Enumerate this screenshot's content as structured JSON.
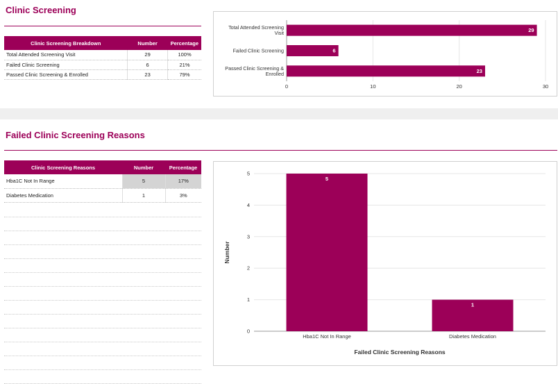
{
  "section1": {
    "title": "Clinic Screening",
    "table": {
      "headers": [
        "Clinic Screening Breakdown",
        "Number",
        "Percentage"
      ],
      "rows": [
        [
          "Total Attended Screening Visit",
          "29",
          "100%"
        ],
        [
          "Failed Clinic Screening",
          "6",
          "21%"
        ],
        [
          "Passed Clinic Screening & Enrolled",
          "23",
          "79%"
        ]
      ]
    }
  },
  "section2": {
    "title": "Failed Clinic Screening Reasons",
    "table": {
      "headers": [
        "Clinic Screening Reasons",
        "Number",
        "Percentage"
      ],
      "rows": [
        [
          "Hba1C Not In Range",
          "5",
          "17%"
        ],
        [
          "Diabetes Medication",
          "1",
          "3%"
        ]
      ]
    }
  },
  "colors": {
    "brand": "#9c0058",
    "grid": "#e6e6e6",
    "highlight": "#d4d4d4"
  },
  "chart_data": [
    {
      "type": "bar",
      "orientation": "horizontal",
      "categories": [
        "Total Attended Screening Visit",
        "Failed Clinic Screening",
        "Passed Clinic Screening & Enrolled"
      ],
      "values": [
        29,
        6,
        23
      ],
      "xlim": [
        0,
        30
      ],
      "ticks": [
        0,
        10,
        20,
        30
      ],
      "tick_labels": [
        "0",
        "10",
        "20",
        "30"
      ],
      "data_labels": [
        "29",
        "6",
        "23"
      ],
      "grid": true
    },
    {
      "type": "bar",
      "orientation": "vertical",
      "categories": [
        "Hba1C Not In Range",
        "Diabetes Medication"
      ],
      "values": [
        5,
        1
      ],
      "ylim": [
        0,
        5
      ],
      "ticks": [
        0,
        1,
        2,
        3,
        4,
        5
      ],
      "tick_labels": [
        "0",
        "1",
        "2",
        "3",
        "4",
        "5"
      ],
      "data_labels": [
        "5",
        "1"
      ],
      "xlabel": "Failed Clinic Screening Reasons",
      "ylabel": "Number",
      "grid": true
    }
  ]
}
